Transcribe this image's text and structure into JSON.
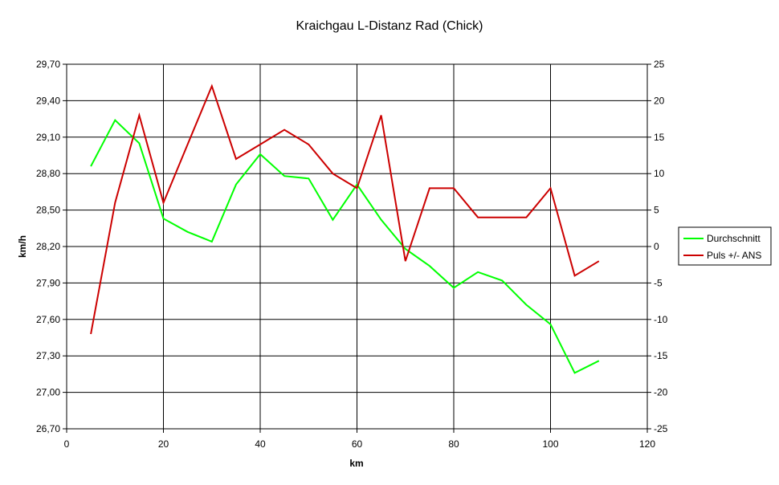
{
  "chart_data": {
    "type": "line",
    "title": "Kraichgau L-Distanz Rad (Chick)",
    "xlabel": "km",
    "ylabel": "km/h",
    "xlim": [
      0,
      120
    ],
    "x_ticks": [
      "0",
      "20",
      "40",
      "60",
      "80",
      "100",
      "120"
    ],
    "y_left_ticks": [
      "26,70",
      "27,00",
      "27,30",
      "27,60",
      "27,90",
      "28,20",
      "28,50",
      "28,80",
      "29,10",
      "29,40",
      "29,70"
    ],
    "y_right_ticks": [
      "-25",
      "-20",
      "-15",
      "-10",
      "-5",
      "0",
      "5",
      "10",
      "15",
      "20",
      "25"
    ],
    "ylim_left": [
      26.7,
      29.7
    ],
    "ylim_right": [
      -25,
      25
    ],
    "grid": "vertical and horizontal major gridlines",
    "legend_position": "right",
    "series": [
      {
        "name": "Durchschnitt",
        "axis": "left",
        "color": "#00ff00",
        "x": [
          5,
          10,
          15,
          20,
          25,
          30,
          35,
          40,
          45,
          50,
          55,
          60,
          65,
          70,
          75,
          80,
          85,
          90,
          95,
          100,
          105,
          110
        ],
        "values": [
          28.86,
          29.24,
          29.05,
          28.43,
          28.32,
          28.24,
          28.71,
          28.96,
          28.78,
          28.76,
          28.42,
          28.71,
          28.42,
          28.18,
          28.04,
          27.86,
          27.99,
          27.92,
          27.72,
          27.56,
          27.16,
          27.26
        ]
      },
      {
        "name": "Puls +/- ANS",
        "axis": "right",
        "color": "#cc0000",
        "x": [
          5,
          10,
          15,
          20,
          25,
          30,
          35,
          40,
          45,
          50,
          55,
          60,
          65,
          70,
          75,
          80,
          85,
          90,
          95,
          100,
          105,
          110
        ],
        "values": [
          -12,
          6,
          18,
          6,
          14,
          22,
          12,
          14,
          16,
          14,
          10,
          8,
          18,
          -2,
          8,
          8,
          4,
          4,
          4,
          8,
          -4,
          -2
        ]
      }
    ]
  }
}
